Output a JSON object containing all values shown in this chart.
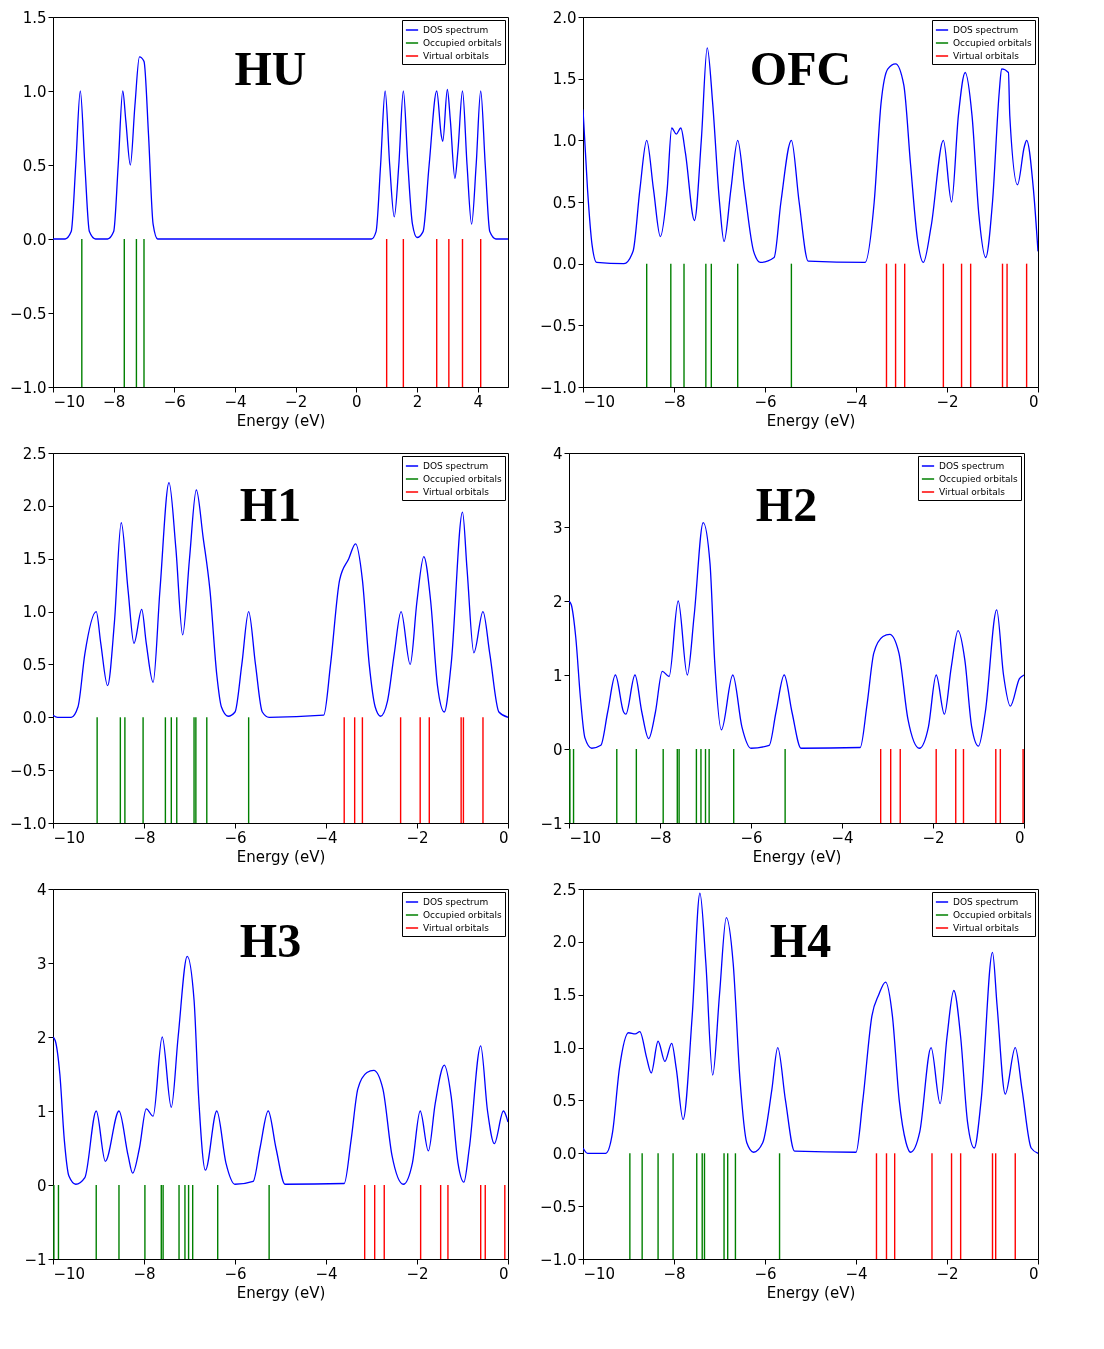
{
  "chart_data": [
    {
      "type": "line",
      "title": "HU",
      "xlabel": "Energy (eV)",
      "xlim": [
        -10,
        5
      ],
      "xticks": [
        -10,
        -8,
        -6,
        -4,
        -2,
        0,
        2,
        4
      ],
      "ylim": [
        -1,
        1.5
      ],
      "yticks": [
        {
          "value": -1,
          "label": "−1.0"
        },
        -0.5,
        {
          "value": 0,
          "label": "0.0"
        },
        0.5,
        {
          "value": 1,
          "label": "1.0"
        },
        1.5
      ],
      "legend": "top right",
      "series": [
        {
          "name": "DOS spectrum",
          "color": "#0000ff",
          "type": "line",
          "x": [
            -10,
            -9.6,
            -9.4,
            -9.25,
            -9.1,
            -8.95,
            -8.8,
            -8.6,
            -8.2,
            -8.0,
            -7.85,
            -7.7,
            -7.6,
            -7.45,
            -7.3,
            -7.15,
            -7.0,
            -6.85,
            -6.7,
            -6.55,
            0.5,
            0.65,
            0.8,
            0.95,
            1.1,
            1.25,
            1.4,
            1.55,
            1.7,
            1.85,
            2.0,
            2.2,
            2.4,
            2.65,
            2.8,
            2.85,
            3.0,
            3.1,
            3.25,
            3.35,
            3.5,
            3.65,
            3.8,
            3.95,
            4.1,
            4.25,
            4.4,
            4.6,
            5
          ],
          "values": [
            0,
            0,
            0.05,
            0.5,
            1.0,
            0.5,
            0.05,
            0,
            0,
            0.05,
            0.5,
            1.0,
            0.8,
            0.5,
            0.9,
            1.23,
            1.2,
            0.7,
            0.1,
            0,
            0,
            0.05,
            0.5,
            1.0,
            0.5,
            0.15,
            0.5,
            1.0,
            0.5,
            0.1,
            0.01,
            0.05,
            0.5,
            1.0,
            0.7,
            0.66,
            1.01,
            0.8,
            0.41,
            0.6,
            1.0,
            0.5,
            0.1,
            0.5,
            1.0,
            0.5,
            0.05,
            0,
            0
          ]
        },
        {
          "name": "Occupied orbitals",
          "color": "#008000",
          "type": "bar",
          "x": [
            -9.05,
            -7.65,
            -7.25,
            -7.0
          ],
          "values": [
            -1,
            -1,
            -1,
            -1
          ]
        },
        {
          "name": "Virtual orbitals",
          "color": "#ff0000",
          "type": "bar",
          "x": [
            1.0,
            1.55,
            2.65,
            3.05,
            3.5,
            4.1
          ],
          "values": [
            -1,
            -1,
            -1,
            -1,
            -1,
            -1
          ]
        }
      ]
    },
    {
      "type": "line",
      "title": "OFC",
      "xlabel": "Energy (eV)",
      "xlim": [
        -10,
        0
      ],
      "xticks": [
        -10,
        -8,
        -6,
        -4,
        -2,
        0
      ],
      "ylim": [
        -1,
        2
      ],
      "yticks": [
        {
          "value": -1,
          "label": "−1.0"
        },
        -0.5,
        {
          "value": 0,
          "label": "0.0"
        },
        0.5,
        {
          "value": 1,
          "label": "1.0"
        },
        1.5,
        {
          "value": 2,
          "label": "2.0"
        }
      ],
      "legend": "top right",
      "series": [
        {
          "name": "DOS spectrum",
          "color": "#0000ff",
          "type": "line",
          "x": [
            -10,
            -9.9,
            -9.8,
            -9.7,
            -9.1,
            -8.9,
            -8.75,
            -8.6,
            -8.45,
            -8.3,
            -8.15,
            -8.05,
            -7.95,
            -7.85,
            -7.75,
            -7.55,
            -7.4,
            -7.27,
            -7.15,
            -7.0,
            -6.9,
            -6.75,
            -6.6,
            -6.45,
            -6.25,
            -6.1,
            -5.8,
            -5.65,
            -5.42,
            -5.25,
            -5.05,
            -3.8,
            -3.6,
            -3.45,
            -3.3,
            -3.13,
            -2.95,
            -2.8,
            -2.65,
            -2.52,
            -2.35,
            -2.08,
            -1.9,
            -1.75,
            -1.6,
            -1.45,
            -1.3,
            -1.15,
            -1.0,
            -0.85,
            -0.8,
            -0.65,
            -0.62,
            -0.45,
            -0.3,
            -0.25,
            -0.1,
            0
          ],
          "values": [
            1.25,
            0.6,
            0.15,
            0.01,
            0,
            0.1,
            0.6,
            1.0,
            0.6,
            0.22,
            0.6,
            1.1,
            1.05,
            1.1,
            0.9,
            0.35,
            1.0,
            1.75,
            1.3,
            0.5,
            0.18,
            0.6,
            1.0,
            0.6,
            0.1,
            0.01,
            0.05,
            0.5,
            1.0,
            0.5,
            0.02,
            0.01,
            0.5,
            1.3,
            1.58,
            1.62,
            1.45,
            0.8,
            0.2,
            0.01,
            0.3,
            1.0,
            0.5,
            1.2,
            1.55,
            1.2,
            0.4,
            0.05,
            0.5,
            1.4,
            1.58,
            1.55,
            1.2,
            0.64,
            0.95,
            1.0,
            0.6,
            0.1
          ]
        },
        {
          "name": "Occupied orbitals",
          "color": "#008000",
          "type": "bar",
          "x": [
            -8.6,
            -8.07,
            -7.78,
            -7.3,
            -7.18,
            -6.6,
            -5.42
          ],
          "values": [
            -1,
            -1,
            -1,
            -1,
            -1,
            -1,
            -1
          ]
        },
        {
          "name": "Virtual orbitals",
          "color": "#ff0000",
          "type": "bar",
          "x": [
            -3.33,
            -3.13,
            -2.93,
            -2.08,
            -1.68,
            -1.48,
            -0.78,
            -0.68,
            -0.25
          ],
          "values": [
            -1,
            -1,
            -1,
            -1,
            -1,
            -1,
            -1,
            -1,
            -1
          ]
        }
      ]
    },
    {
      "type": "line",
      "title": "H1",
      "xlabel": "Energy (eV)",
      "xlim": [
        -10,
        0
      ],
      "xticks": [
        -10,
        -8,
        -6,
        -4,
        -2,
        0
      ],
      "ylim": [
        -1,
        2.5
      ],
      "yticks": [
        {
          "value": -1,
          "label": "−1.0"
        },
        -0.5,
        {
          "value": 0,
          "label": "0.0"
        },
        0.5,
        {
          "value": 1,
          "label": "1.0"
        },
        1.5,
        {
          "value": 2,
          "label": "2.0"
        },
        2.5
      ],
      "legend": "top right",
      "series": [
        {
          "name": "DOS spectrum",
          "color": "#0000ff",
          "type": "line",
          "x": [
            -10,
            -9.9,
            -9.6,
            -9.45,
            -9.3,
            -9.05,
            -8.95,
            -8.8,
            -8.65,
            -8.5,
            -8.35,
            -8.22,
            -8.05,
            -7.95,
            -7.8,
            -7.65,
            -7.45,
            -7.3,
            -7.15,
            -7.0,
            -6.85,
            -6.7,
            -6.55,
            -6.4,
            -6.3,
            -6.15,
            -6.0,
            -5.85,
            -5.7,
            -5.55,
            -5.4,
            -5.25,
            -4.05,
            -3.9,
            -3.7,
            -3.5,
            -3.35,
            -3.2,
            -3.05,
            -2.92,
            -2.8,
            -2.65,
            -2.5,
            -2.35,
            -2.15,
            -2.0,
            -1.85,
            -1.7,
            -1.55,
            -1.4,
            -1.25,
            -1.0,
            -0.9,
            -0.75,
            -0.55,
            -0.4,
            -0.2,
            0
          ],
          "values": [
            0.02,
            0,
            0,
            0.1,
            0.6,
            1.0,
            0.7,
            0.3,
            0.9,
            1.84,
            1.2,
            0.7,
            1.02,
            0.7,
            0.33,
            1.2,
            2.22,
            1.6,
            0.78,
            1.5,
            2.15,
            1.7,
            1.2,
            0.4,
            0.1,
            0.01,
            0.05,
            0.5,
            1.0,
            0.5,
            0.05,
            0,
            0.02,
            0.5,
            1.3,
            1.5,
            1.64,
            1.3,
            0.5,
            0.1,
            0.01,
            0.15,
            0.6,
            1.0,
            0.5,
            1.1,
            1.52,
            1.1,
            0.3,
            0.05,
            0.5,
            1.94,
            1.4,
            0.61,
            1.0,
            0.6,
            0.05,
            0
          ]
        },
        {
          "name": "Occupied orbitals",
          "color": "#008000",
          "type": "bar",
          "x": [
            -9.03,
            -8.52,
            -8.42,
            -8.02,
            -7.53,
            -7.4,
            -7.28,
            -6.9,
            -6.86,
            -6.62,
            -5.7
          ],
          "values": [
            -1,
            -1,
            -1,
            -1,
            -1,
            -1,
            -1,
            -1,
            -1,
            -1,
            -1
          ]
        },
        {
          "name": "Virtual orbitals",
          "color": "#ff0000",
          "type": "bar",
          "x": [
            -3.6,
            -3.37,
            -3.2,
            -2.36,
            -1.93,
            -1.73,
            -1.03,
            -0.98,
            -0.55
          ],
          "values": [
            -1,
            -1,
            -1,
            -1,
            -1,
            -1,
            -1,
            -1,
            -1
          ]
        }
      ]
    },
    {
      "type": "line",
      "title": "H2",
      "xlabel": "Energy (eV)",
      "xlim": [
        -10,
        0
      ],
      "xticks": [
        -10,
        -8,
        -6,
        -4,
        -2,
        0
      ],
      "ylim": [
        -1,
        4
      ],
      "yticks": [
        -1,
        0,
        1,
        2,
        3,
        4
      ],
      "legend": "top right",
      "series": [
        {
          "name": "DOS spectrum",
          "color": "#0000ff",
          "type": "line",
          "x": [
            -10,
            -9.95,
            -9.85,
            -9.75,
            -9.65,
            -9.5,
            -9.3,
            -9.15,
            -8.98,
            -8.8,
            -8.75,
            -8.55,
            -8.4,
            -8.25,
            -8.1,
            -7.95,
            -7.8,
            -7.6,
            -7.4,
            -7.25,
            -7.05,
            -6.9,
            -6.8,
            -6.65,
            -6.4,
            -6.2,
            -6.0,
            -5.6,
            -5.45,
            -5.27,
            -5.1,
            -4.9,
            -3.6,
            -3.45,
            -3.3,
            -3.1,
            -2.95,
            -2.75,
            -2.55,
            -2.3,
            -2.1,
            -1.93,
            -1.75,
            -1.6,
            -1.45,
            -1.3,
            -1.15,
            -1.0,
            -0.85,
            -0.6,
            -0.45,
            -0.3,
            -0.1,
            0
          ],
          "values": [
            2.0,
            1.95,
            1.5,
            0.7,
            0.15,
            0.01,
            0.05,
            0.5,
            1.0,
            0.5,
            0.47,
            1.0,
            0.5,
            0.14,
            0.5,
            1.05,
            0.98,
            2.0,
            1.0,
            1.8,
            3.06,
            2.5,
            1.2,
            0.26,
            1.0,
            0.3,
            0.01,
            0.05,
            0.5,
            1.0,
            0.5,
            0.01,
            0.02,
            0.6,
            1.3,
            1.52,
            1.55,
            1.3,
            0.4,
            0.01,
            0.3,
            1.0,
            0.47,
            1.1,
            1.6,
            1.2,
            0.3,
            0.04,
            0.5,
            1.88,
            1.0,
            0.58,
            0.95,
            1.0
          ]
        },
        {
          "name": "Occupied orbitals",
          "color": "#008000",
          "type": "bar",
          "x": [
            -9.98,
            -9.9,
            -8.95,
            -8.52,
            -7.93,
            -7.62,
            -7.58,
            -7.2,
            -7.1,
            -7.0,
            -6.92,
            -6.38,
            -5.25
          ],
          "values": [
            -1,
            -1,
            -1,
            -1,
            -1,
            -1,
            -1,
            -1,
            -1,
            -1,
            -1,
            -1,
            -1
          ]
        },
        {
          "name": "Virtual orbitals",
          "color": "#ff0000",
          "type": "bar",
          "x": [
            -3.15,
            -2.93,
            -2.72,
            -1.93,
            -1.5,
            -1.33,
            -0.62,
            -0.52,
            -0.02
          ],
          "values": [
            -1,
            -1,
            -1,
            -1,
            -1,
            -1,
            -1,
            -1,
            -1
          ]
        }
      ]
    },
    {
      "type": "line",
      "title": "H3",
      "xlabel": "Energy (eV)",
      "xlim": [
        -10,
        0
      ],
      "xticks": [
        -10,
        -8,
        -6,
        -4,
        -2,
        0
      ],
      "ylim": [
        -1,
        4
      ],
      "yticks": [
        -1,
        0,
        1,
        2,
        3,
        4
      ],
      "legend": "top right",
      "series": [
        {
          "name": "DOS spectrum",
          "color": "#0000ff",
          "type": "line",
          "x": [
            -10,
            -9.95,
            -9.85,
            -9.75,
            -9.65,
            -9.5,
            -9.3,
            -9.05,
            -8.85,
            -8.55,
            -8.35,
            -8.25,
            -8.1,
            -7.95,
            -7.8,
            -7.6,
            -7.4,
            -7.25,
            -7.05,
            -6.9,
            -6.8,
            -6.65,
            -6.4,
            -6.2,
            -6.0,
            -5.6,
            -5.45,
            -5.27,
            -5.1,
            -4.9,
            -3.6,
            -3.45,
            -3.3,
            -3.1,
            -2.95,
            -2.75,
            -2.55,
            -2.3,
            -2.1,
            -1.93,
            -1.75,
            -1.6,
            -1.4,
            -1.25,
            -1.1,
            -0.97,
            -0.85,
            -0.6,
            -0.45,
            -0.3,
            -0.1,
            0
          ],
          "values": [
            2.0,
            1.95,
            1.5,
            0.6,
            0.12,
            0.01,
            0.1,
            1.0,
            0.32,
            1.0,
            0.4,
            0.16,
            0.5,
            1.03,
            0.93,
            2.0,
            1.05,
            2.0,
            3.09,
            2.5,
            1.2,
            0.2,
            1.0,
            0.3,
            0.01,
            0.05,
            0.5,
            1.0,
            0.5,
            0.01,
            0.02,
            0.6,
            1.3,
            1.52,
            1.55,
            1.3,
            0.4,
            0.01,
            0.3,
            1.0,
            0.46,
            1.1,
            1.62,
            1.2,
            0.3,
            0.04,
            0.5,
            1.88,
            1.0,
            0.56,
            1.0,
            0.85
          ]
        },
        {
          "name": "Occupied orbitals",
          "color": "#008000",
          "type": "bar",
          "x": [
            -9.98,
            -9.88,
            -9.05,
            -8.55,
            -7.98,
            -7.62,
            -7.58,
            -7.23,
            -7.1,
            -7.02,
            -6.93,
            -6.38,
            -5.25
          ],
          "values": [
            -1,
            -1,
            -1,
            -1,
            -1,
            -1,
            -1,
            -1,
            -1,
            -1,
            -1,
            -1,
            -1
          ]
        },
        {
          "name": "Virtual orbitals",
          "color": "#ff0000",
          "type": "bar",
          "x": [
            -3.15,
            -2.93,
            -2.72,
            -1.92,
            -1.48,
            -1.32,
            -0.6,
            -0.5,
            -0.07
          ],
          "values": [
            -1,
            -1,
            -1,
            -1,
            -1,
            -1,
            -1,
            -1,
            -1
          ]
        }
      ]
    },
    {
      "type": "line",
      "title": "H4",
      "xlabel": "Energy (eV)",
      "xlim": [
        -10,
        0
      ],
      "xticks": [
        -10,
        -8,
        -6,
        -4,
        -2,
        0
      ],
      "ylim": [
        -1,
        2.5
      ],
      "yticks": [
        {
          "value": -1,
          "label": "−1.0"
        },
        -0.5,
        {
          "value": 0,
          "label": "0.0"
        },
        0.5,
        {
          "value": 1,
          "label": "1.0"
        },
        1.5,
        {
          "value": 2,
          "label": "2.0"
        },
        2.5
      ],
      "legend": "top right",
      "series": [
        {
          "name": "DOS spectrum",
          "color": "#0000ff",
          "type": "line",
          "x": [
            -10,
            -9.9,
            -9.5,
            -9.35,
            -9.2,
            -9.0,
            -8.85,
            -8.75,
            -8.6,
            -8.5,
            -8.35,
            -8.2,
            -8.05,
            -7.95,
            -7.8,
            -7.6,
            -7.43,
            -7.3,
            -7.15,
            -7.0,
            -6.85,
            -6.7,
            -6.55,
            -6.4,
            -6.25,
            -6.05,
            -5.85,
            -5.72,
            -5.55,
            -5.35,
            -4.0,
            -3.85,
            -3.65,
            -3.5,
            -3.35,
            -3.2,
            -3.05,
            -2.9,
            -2.8,
            -2.6,
            -2.35,
            -2.15,
            -2.0,
            -1.85,
            -1.7,
            -1.55,
            -1.4,
            -1.25,
            -1.0,
            -0.9,
            -0.72,
            -0.5,
            -0.35,
            -0.15,
            0
          ],
          "values": [
            0.05,
            0,
            0,
            0.2,
            0.8,
            1.14,
            1.13,
            1.15,
            0.9,
            0.76,
            1.06,
            0.87,
            1.04,
            0.8,
            0.32,
            1.3,
            2.46,
            1.8,
            0.74,
            1.5,
            2.23,
            1.8,
            0.7,
            0.1,
            0.01,
            0.1,
            0.6,
            1.0,
            0.5,
            0.02,
            0.01,
            0.5,
            1.3,
            1.5,
            1.62,
            1.3,
            0.5,
            0.1,
            0.01,
            0.2,
            1.0,
            0.47,
            1.1,
            1.54,
            1.1,
            0.3,
            0.05,
            0.5,
            1.9,
            1.4,
            0.56,
            1.0,
            0.6,
            0.05,
            0
          ]
        },
        {
          "name": "Occupied orbitals",
          "color": "#008000",
          "type": "bar",
          "x": [
            -8.97,
            -8.7,
            -8.35,
            -8.02,
            -7.5,
            -7.38,
            -7.33,
            -6.9,
            -6.82,
            -6.65,
            -5.68
          ],
          "values": [
            -1,
            -1,
            -1,
            -1,
            -1,
            -1,
            -1,
            -1,
            -1,
            -1,
            -1
          ]
        },
        {
          "name": "Virtual orbitals",
          "color": "#ff0000",
          "type": "bar",
          "x": [
            -3.55,
            -3.33,
            -3.15,
            -2.33,
            -1.9,
            -1.7,
            -1.0,
            -0.93,
            -0.5
          ],
          "values": [
            -1,
            -1,
            -1,
            -1,
            -1,
            -1,
            -1,
            -1,
            -1
          ]
        }
      ]
    }
  ]
}
